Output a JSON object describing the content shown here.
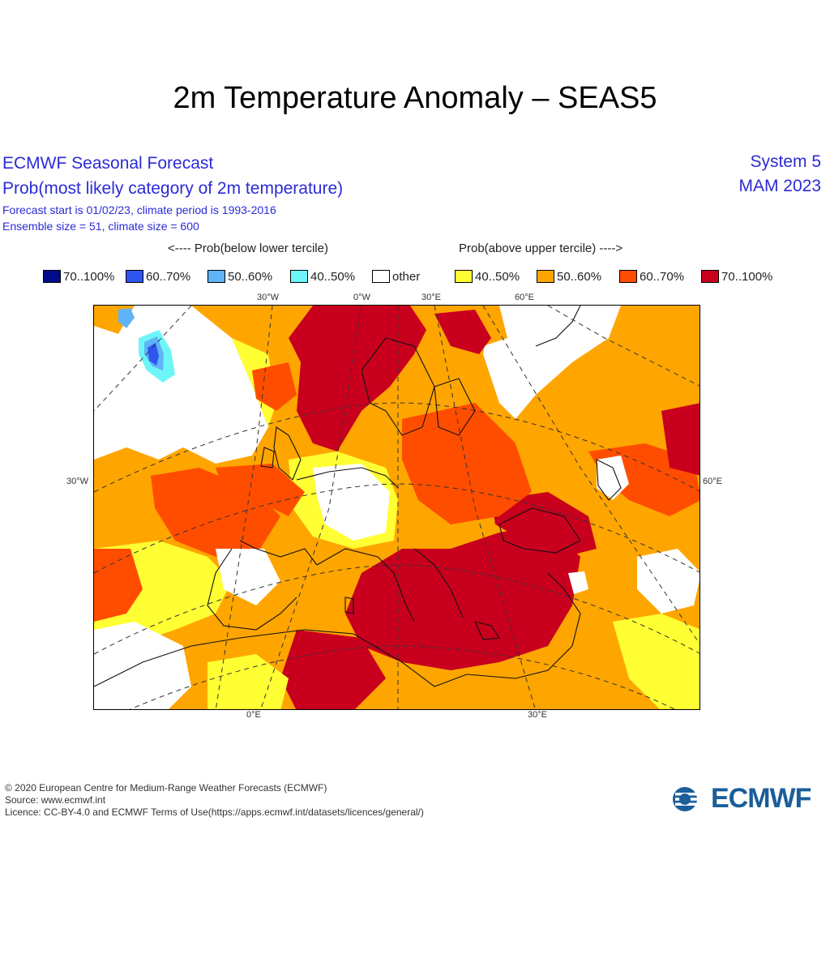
{
  "title": "2m Temperature Anomaly – SEAS5",
  "header": {
    "line1": "ECMWF Seasonal Forecast",
    "line2": "Prob(most likely category of 2m temperature)",
    "line3": "Forecast start is 01/02/23, climate period is 1993-2016",
    "line4": "Ensemble size = 51, climate size = 600",
    "system": "System 5",
    "season": "MAM 2023"
  },
  "legend": {
    "below_label": "<---- Prob(below lower tercile)",
    "above_label": "Prob(above upper tercile) ---->",
    "items": [
      {
        "label": "70..100%",
        "color": "#000c8a"
      },
      {
        "label": "60..70%",
        "color": "#2e56ef"
      },
      {
        "label": "50..60%",
        "color": "#5fb3f7"
      },
      {
        "label": "40..50%",
        "color": "#6ef5f7"
      },
      {
        "label": "other",
        "color": "#ffffff"
      },
      {
        "label": "40..50%",
        "color": "#ffff33"
      },
      {
        "label": "50..60%",
        "color": "#ffa500"
      },
      {
        "label": "60..70%",
        "color": "#ff4d00"
      },
      {
        "label": "70..100%",
        "color": "#c8001e"
      }
    ]
  },
  "map": {
    "ticks": {
      "top": [
        "30°W",
        "0°W",
        "30°E",
        "60°E"
      ],
      "left": "30°W",
      "right": "60°E",
      "bottom": [
        "0°E",
        "30°E"
      ]
    }
  },
  "footer": {
    "copyright": "© 2020 European Centre for Medium-Range Weather Forecasts (ECMWF)",
    "source": "Source: www.ecmwf.int",
    "licence": "Licence: CC-BY-4.0 and ECMWF Terms of Use(https://apps.ecmwf.int/datasets/licences/general/)",
    "logo_text": "ECMWF"
  }
}
